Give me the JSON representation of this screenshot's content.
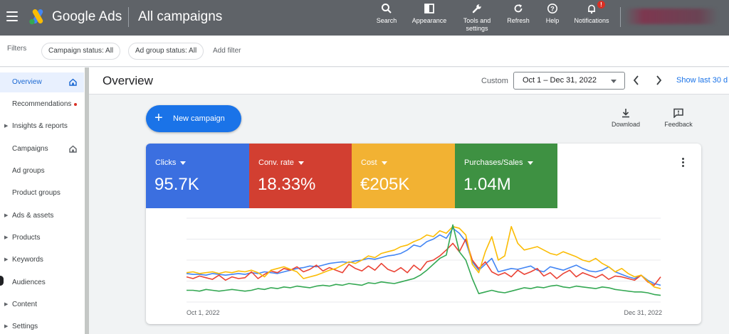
{
  "header": {
    "brand": "Google Ads",
    "page": "All campaigns",
    "tools": [
      {
        "label": "Search",
        "icon": "search-icon"
      },
      {
        "label": "Appearance",
        "icon": "appearance-icon"
      },
      {
        "label": "Tools and settings",
        "icon": "wrench-icon"
      },
      {
        "label": "Refresh",
        "icon": "refresh-icon"
      },
      {
        "label": "Help",
        "icon": "help-icon"
      },
      {
        "label": "Notifications",
        "icon": "bell-icon"
      }
    ],
    "notification_badge": "!"
  },
  "filters": {
    "label": "Filters",
    "chips": [
      "Campaign status: All",
      "Ad group status: All"
    ],
    "add": "Add filter"
  },
  "sidebar": {
    "items": [
      {
        "label": "Overview",
        "arrow": false,
        "active": true,
        "home": true
      },
      {
        "label": "Recommendations",
        "arrow": false,
        "dot": true
      },
      {
        "label": "Insights & reports",
        "arrow": true
      },
      {
        "label": "Campaigns",
        "arrow": false,
        "home": true
      },
      {
        "label": "Ad groups",
        "arrow": false
      },
      {
        "label": "Product groups",
        "arrow": false
      },
      {
        "label": "Ads & assets",
        "arrow": true
      },
      {
        "label": "Products",
        "arrow": true
      },
      {
        "label": "Keywords",
        "arrow": true
      },
      {
        "label": "Audiences",
        "arrow": false
      },
      {
        "label": "Content",
        "arrow": true
      },
      {
        "label": "Settings",
        "arrow": true
      }
    ]
  },
  "main": {
    "title": "Overview",
    "date_label": "Custom",
    "date_range": "Oct 1 – Dec 31, 2022",
    "show_last": "Show last 30 d",
    "new_campaign": "New campaign",
    "download": "Download",
    "feedback": "Feedback"
  },
  "metrics": [
    {
      "name": "Clicks",
      "value": "95.7K",
      "color": "#3b6fe0"
    },
    {
      "name": "Conv. rate",
      "value": "18.33%",
      "color": "#d23f31"
    },
    {
      "name": "Cost",
      "value": "€205K",
      "color": "#f2b233"
    },
    {
      "name": "Purchases/Sales",
      "value": "1.04M",
      "color": "#3e9142"
    }
  ],
  "chart_data": {
    "type": "line",
    "x_start_label": "Oct 1, 2022",
    "x_end_label": "Dec 31, 2022",
    "grid": true,
    "ylim": [
      0,
      100
    ],
    "series": [
      {
        "name": "Clicks",
        "color": "#4285f4",
        "values": [
          34,
          33,
          33,
          32,
          34,
          33,
          32,
          33,
          34,
          33,
          35,
          34,
          36,
          35,
          34,
          36,
          38,
          40,
          41,
          43,
          42,
          44,
          46,
          47,
          48,
          47,
          49,
          50,
          52,
          51,
          53,
          55,
          56,
          58,
          62,
          68,
          66,
          72,
          75,
          80,
          76,
          88,
          82,
          72,
          48,
          38,
          45,
          52,
          36,
          38,
          40,
          39,
          41,
          43,
          38,
          36,
          42,
          40,
          38,
          41,
          44,
          40,
          37,
          36,
          38,
          42,
          36,
          33,
          30,
          28,
          32,
          26,
          22,
          20
        ]
      },
      {
        "name": "Conv. rate",
        "color": "#ea4335",
        "values": [
          30,
          28,
          31,
          29,
          27,
          32,
          26,
          30,
          28,
          29,
          36,
          28,
          33,
          37,
          35,
          40,
          38,
          42,
          36,
          39,
          44,
          37,
          41,
          38,
          35,
          45,
          40,
          37,
          43,
          38,
          46,
          39,
          36,
          41,
          35,
          44,
          38,
          48,
          50,
          55,
          62,
          70,
          60,
          75,
          50,
          40,
          48,
          36,
          32,
          35,
          30,
          38,
          33,
          36,
          40,
          31,
          35,
          28,
          34,
          38,
          30,
          35,
          32,
          29,
          33,
          27,
          31,
          30,
          28,
          26,
          32,
          24,
          20,
          30
        ]
      },
      {
        "name": "Cost",
        "color": "#fbbc04",
        "values": [
          35,
          36,
          34,
          35,
          36,
          34,
          36,
          35,
          37,
          36,
          38,
          35,
          30,
          38,
          40,
          42,
          39,
          36,
          28,
          30,
          32,
          35,
          38,
          40,
          44,
          48,
          46,
          50,
          55,
          53,
          58,
          60,
          62,
          66,
          68,
          72,
          75,
          80,
          78,
          85,
          82,
          90,
          88,
          80,
          45,
          35,
          60,
          78,
          50,
          55,
          90,
          70,
          62,
          64,
          66,
          62,
          58,
          56,
          60,
          57,
          54,
          50,
          48,
          52,
          46,
          42,
          36,
          40,
          34,
          30,
          32,
          25,
          18,
          16
        ]
      },
      {
        "name": "Purchases/Sales",
        "color": "#34a853",
        "values": [
          14,
          14,
          13,
          15,
          14,
          13,
          14,
          15,
          14,
          13,
          14,
          16,
          15,
          17,
          16,
          18,
          17,
          19,
          18,
          17,
          19,
          20,
          19,
          21,
          20,
          22,
          21,
          20,
          23,
          22,
          24,
          23,
          22,
          24,
          26,
          28,
          32,
          38,
          45,
          52,
          56,
          92,
          60,
          50,
          28,
          10,
          12,
          14,
          12,
          11,
          13,
          15,
          17,
          16,
          18,
          17,
          19,
          20,
          18,
          17,
          19,
          18,
          17,
          16,
          18,
          17,
          15,
          14,
          13,
          12,
          12,
          11,
          9,
          8
        ]
      }
    ]
  }
}
